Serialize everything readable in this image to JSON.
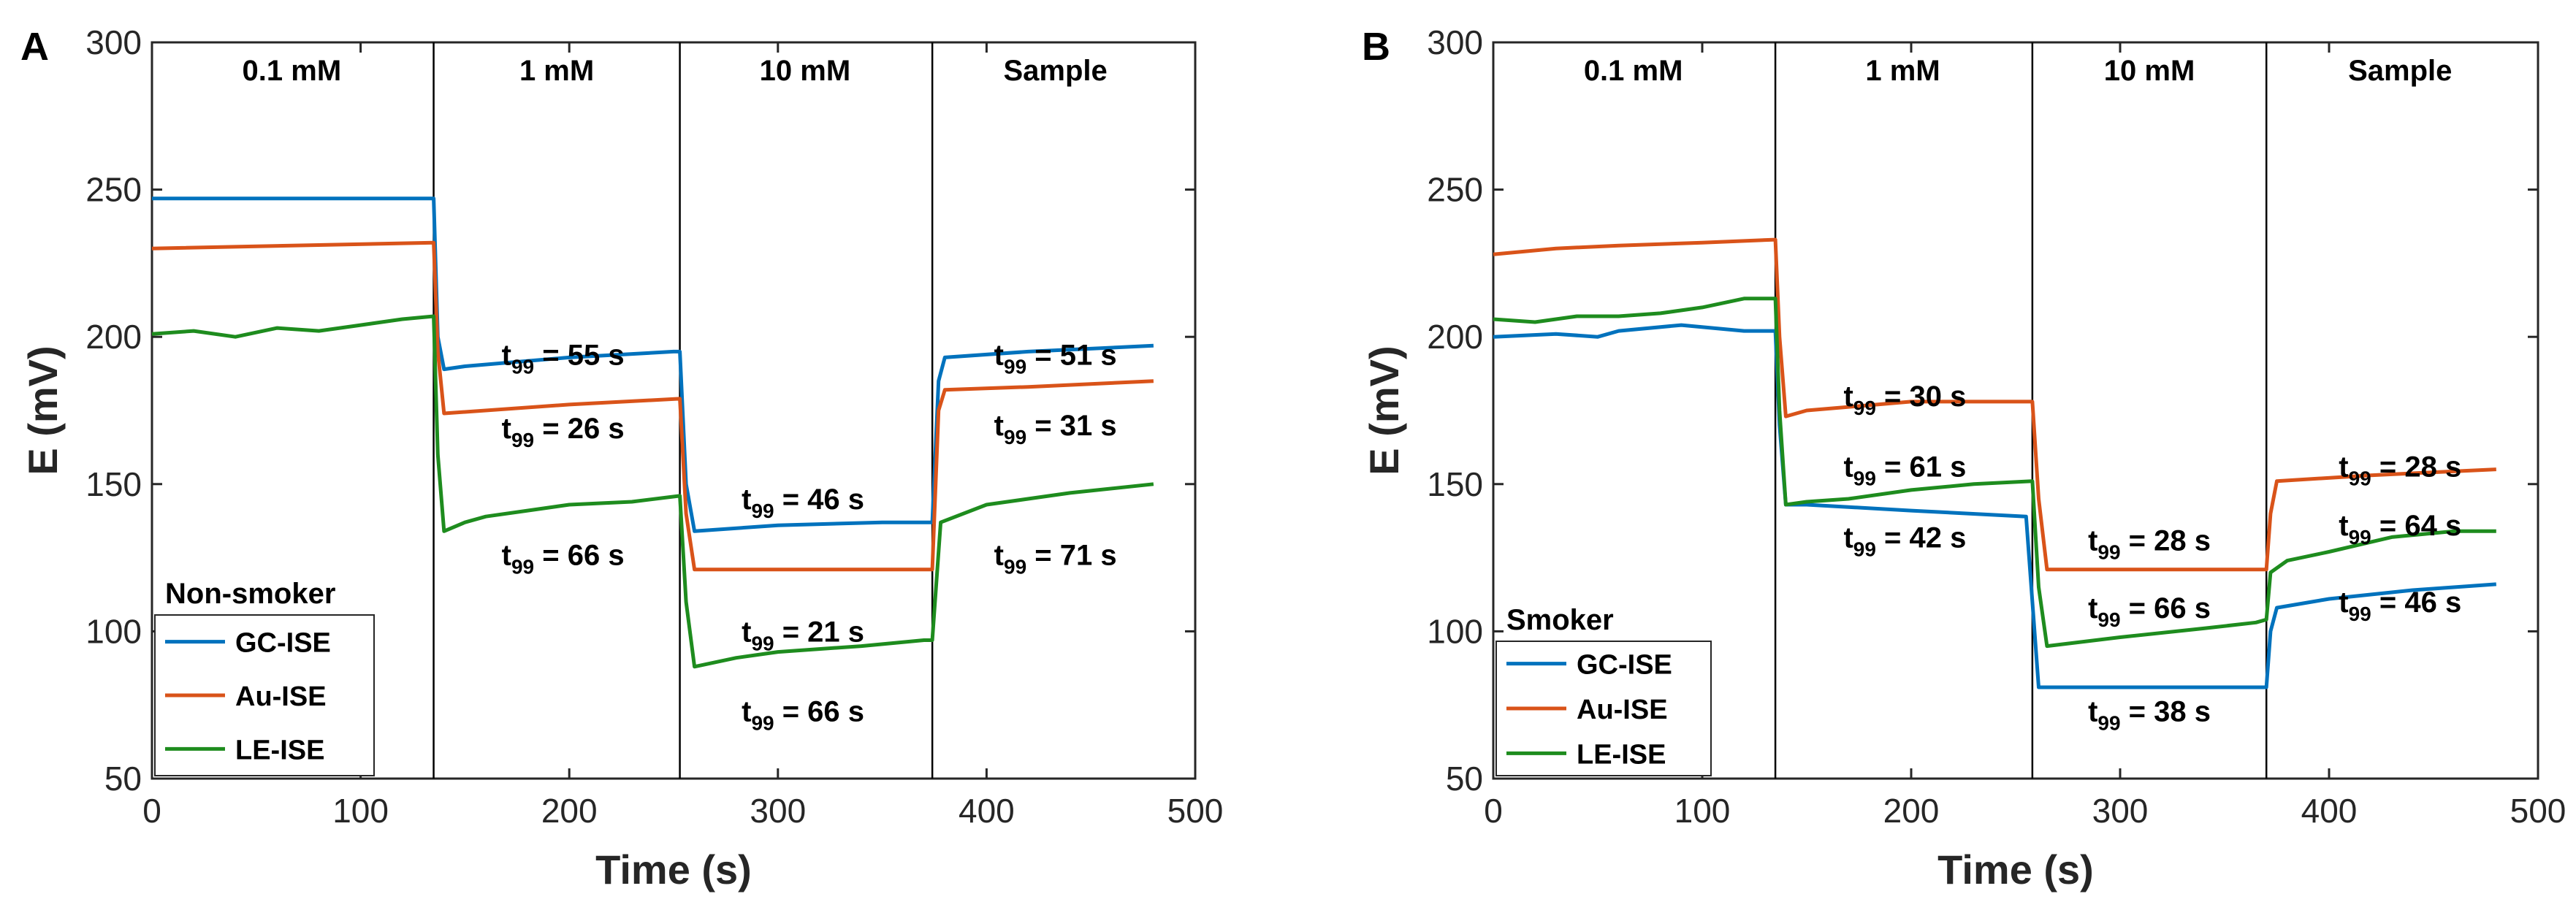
{
  "chart_data": [
    {
      "panel": "A",
      "type": "line",
      "xlabel": "Time (s)",
      "ylabel": "E (mV)",
      "xlim": [
        0,
        500
      ],
      "ylim": [
        50,
        300
      ],
      "xticks": [
        "0",
        "100",
        "200",
        "300",
        "400",
        "500"
      ],
      "yticks": [
        "50",
        "100",
        "150",
        "200",
        "250",
        "300"
      ],
      "dividers": [
        135,
        253,
        374
      ],
      "concentrations": [
        {
          "label": "0.1 mM",
          "x": 67
        },
        {
          "label": "1 mM",
          "x": 194
        },
        {
          "label": "10 mM",
          "x": 313
        },
        {
          "label": "Sample",
          "x": 433
        }
      ],
      "legend": {
        "title": "Non-smoker",
        "location": "bottom-left"
      },
      "series": [
        {
          "name": "GC-ISE",
          "color": "#0072BD",
          "x": [
            0,
            135,
            137,
            140,
            150,
            200,
            250,
            253,
            256,
            260,
            300,
            350,
            370,
            374,
            377,
            380,
            420,
            480
          ],
          "y": [
            247,
            247,
            200,
            189,
            190,
            193,
            195,
            195,
            150,
            134,
            136,
            137,
            137,
            137,
            185,
            193,
            195,
            197
          ]
        },
        {
          "name": "Au-ISE",
          "color": "#D95319",
          "x": [
            0,
            135,
            137,
            140,
            200,
            253,
            256,
            260,
            300,
            370,
            374,
            377,
            380,
            420,
            480
          ],
          "y": [
            230,
            232,
            195,
            174,
            177,
            179,
            140,
            121,
            121,
            121,
            121,
            175,
            182,
            183,
            185
          ]
        },
        {
          "name": "LE-ISE",
          "color": "#1E8C1E",
          "x": [
            0,
            20,
            40,
            60,
            80,
            100,
            120,
            135,
            137,
            140,
            150,
            160,
            180,
            200,
            230,
            253,
            256,
            260,
            280,
            300,
            340,
            370,
            374,
            378,
            400,
            440,
            480
          ],
          "y": [
            201,
            202,
            200,
            203,
            202,
            204,
            206,
            207,
            160,
            134,
            137,
            139,
            141,
            143,
            144,
            146,
            110,
            88,
            91,
            93,
            95,
            97,
            97,
            137,
            143,
            147,
            150
          ]
        }
      ],
      "annotations": [
        {
          "main": "t",
          "sub": "99",
          "rest": " = 55 s",
          "x": 197,
          "y": 194
        },
        {
          "main": "t",
          "sub": "99",
          "rest": " = 26 s",
          "x": 197,
          "y": 169
        },
        {
          "main": "t",
          "sub": "99",
          "rest": " = 66 s",
          "x": 197,
          "y": 126
        },
        {
          "main": "t",
          "sub": "99",
          "rest": " = 46 s",
          "x": 312,
          "y": 145
        },
        {
          "main": "t",
          "sub": "99",
          "rest": " = 21 s",
          "x": 312,
          "y": 100
        },
        {
          "main": "t",
          "sub": "99",
          "rest": " = 66 s",
          "x": 312,
          "y": 73
        },
        {
          "main": "t",
          "sub": "99",
          "rest": " = 51 s",
          "x": 433,
          "y": 194
        },
        {
          "main": "t",
          "sub": "99",
          "rest": " = 31 s",
          "x": 433,
          "y": 170
        },
        {
          "main": "t",
          "sub": "99",
          "rest": " = 71 s",
          "x": 433,
          "y": 126
        }
      ]
    },
    {
      "panel": "B",
      "type": "line",
      "xlabel": "Time (s)",
      "ylabel": "E (mV)",
      "xlim": [
        0,
        500
      ],
      "ylim": [
        50,
        300
      ],
      "xticks": [
        "0",
        "100",
        "200",
        "300",
        "400",
        "500"
      ],
      "yticks": [
        "50",
        "100",
        "150",
        "200",
        "250",
        "300"
      ],
      "dividers": [
        135,
        258,
        370
      ],
      "concentrations": [
        {
          "label": "0.1 mM",
          "x": 67
        },
        {
          "label": "1 mM",
          "x": 196
        },
        {
          "label": "10 mM",
          "x": 314
        },
        {
          "label": "Sample",
          "x": 434
        }
      ],
      "legend": {
        "title": "Smoker",
        "location": "bottom-left"
      },
      "series": [
        {
          "name": "GC-ISE",
          "color": "#0072BD",
          "x": [
            0,
            30,
            50,
            60,
            90,
            120,
            135,
            137,
            140,
            150,
            200,
            255,
            258,
            261,
            265,
            300,
            370,
            372,
            375,
            400,
            440,
            480
          ],
          "y": [
            200,
            201,
            200,
            202,
            204,
            202,
            202,
            170,
            143,
            143,
            141,
            139,
            110,
            81,
            81,
            81,
            81,
            100,
            108,
            111,
            114,
            116
          ]
        },
        {
          "name": "Au-ISE",
          "color": "#D95319",
          "x": [
            0,
            30,
            60,
            100,
            135,
            137,
            140,
            150,
            200,
            258,
            261,
            265,
            300,
            370,
            372,
            375,
            420,
            480
          ],
          "y": [
            228,
            230,
            231,
            232,
            233,
            200,
            173,
            175,
            178,
            178,
            145,
            121,
            121,
            121,
            140,
            151,
            153,
            155
          ]
        },
        {
          "name": "LE-ISE",
          "color": "#1E8C1E",
          "x": [
            0,
            20,
            40,
            60,
            80,
            100,
            120,
            135,
            137,
            140,
            150,
            170,
            200,
            230,
            258,
            261,
            265,
            300,
            340,
            365,
            370,
            372,
            380,
            400,
            430,
            460,
            480
          ],
          "y": [
            206,
            205,
            207,
            207,
            208,
            210,
            213,
            213,
            175,
            143,
            144,
            145,
            148,
            150,
            151,
            115,
            95,
            98,
            101,
            103,
            104,
            120,
            124,
            127,
            132,
            134,
            134
          ]
        }
      ],
      "annotations": [
        {
          "main": "t",
          "sub": "99",
          "rest": " = 30 s",
          "x": 197,
          "y": 180
        },
        {
          "main": "t",
          "sub": "99",
          "rest": " = 61 s",
          "x": 197,
          "y": 156
        },
        {
          "main": "t",
          "sub": "99",
          "rest": " = 42 s",
          "x": 197,
          "y": 132
        },
        {
          "main": "t",
          "sub": "99",
          "rest": " = 28 s",
          "x": 314,
          "y": 131
        },
        {
          "main": "t",
          "sub": "99",
          "rest": " = 66 s",
          "x": 314,
          "y": 108
        },
        {
          "main": "t",
          "sub": "99",
          "rest": " = 38 s",
          "x": 314,
          "y": 73
        },
        {
          "main": "t",
          "sub": "99",
          "rest": " = 28 s",
          "x": 434,
          "y": 156
        },
        {
          "main": "t",
          "sub": "99",
          "rest": " = 64 s",
          "x": 434,
          "y": 136
        },
        {
          "main": "t",
          "sub": "99",
          "rest": " = 46 s",
          "x": 434,
          "y": 110
        }
      ]
    }
  ]
}
